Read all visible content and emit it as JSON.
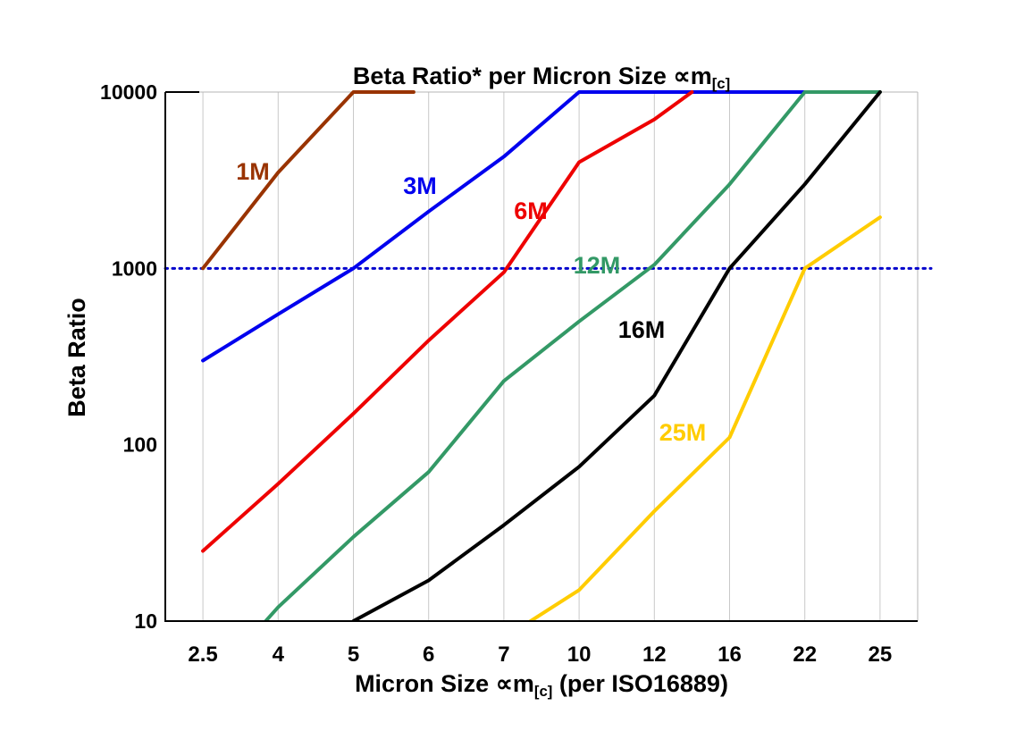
{
  "chart_data": {
    "type": "line",
    "title_full": "Beta Ratio* per Micron Size ∝m[c]",
    "title_parts": {
      "main": "Beta Ratio* per Micron Size ∝m",
      "sub": "[c]"
    },
    "xlabel_full": "Micron Size ∝m[c] (per ISO16889)",
    "xlabel_parts": {
      "main": "Micron Size ∝m",
      "sub": "[c]",
      "suffix": " (per ISO16889)"
    },
    "ylabel": "Beta Ratio",
    "x_categories": [
      2.5,
      4,
      5,
      6,
      7,
      10,
      12,
      16,
      22,
      25
    ],
    "x_tick_labels": [
      "2.5",
      "4",
      "5",
      "6",
      "7",
      "10",
      "12",
      "16",
      "22",
      "25"
    ],
    "y_scale": "log",
    "ylim": [
      10,
      10000
    ],
    "y_ticks": [
      10,
      100,
      1000,
      10000
    ],
    "y_tick_labels": [
      "10",
      "100",
      "1000",
      "10000"
    ],
    "grid": "vertical",
    "legend": "inline-labels",
    "reference_line": {
      "value": 1000,
      "style": "dotted",
      "color": "#0000CC"
    },
    "colors": {
      "grid": "#c9c9c9",
      "axis": "#000000",
      "border": "#b5b5b5",
      "background": "#ffffff",
      "text": "#000000"
    },
    "series": [
      {
        "name": "1M",
        "color": "#993300",
        "points": [
          [
            2.5,
            1000
          ],
          [
            4,
            3500
          ],
          [
            5,
            10000
          ],
          [
            5.8,
            10000
          ]
        ]
      },
      {
        "name": "3M",
        "color": "#0000EE",
        "points": [
          [
            2.5,
            300
          ],
          [
            4,
            550
          ],
          [
            5,
            1000
          ],
          [
            6,
            2100
          ],
          [
            7,
            4300
          ],
          [
            10,
            10000
          ],
          [
            22,
            10000
          ]
        ]
      },
      {
        "name": "6M",
        "color": "#EE0000",
        "points": [
          [
            2.5,
            25
          ],
          [
            4,
            60
          ],
          [
            5,
            150
          ],
          [
            6,
            390
          ],
          [
            7,
            950
          ],
          [
            10,
            4000
          ],
          [
            12,
            7000
          ],
          [
            14,
            10000
          ]
        ]
      },
      {
        "name": "12M",
        "color": "#339966",
        "points": [
          [
            2.5,
            4
          ],
          [
            4,
            12
          ],
          [
            5,
            30
          ],
          [
            6,
            70
          ],
          [
            7,
            230
          ],
          [
            10,
            500
          ],
          [
            12,
            1050
          ],
          [
            16,
            3000
          ],
          [
            22,
            10000
          ],
          [
            25,
            10000
          ]
        ]
      },
      {
        "name": "16M",
        "color": "#000000",
        "points": [
          [
            5,
            10
          ],
          [
            6,
            17
          ],
          [
            7,
            35
          ],
          [
            10,
            75
          ],
          [
            12,
            190
          ],
          [
            16,
            1000
          ],
          [
            22,
            3000
          ],
          [
            25,
            10000
          ]
        ]
      },
      {
        "name": "25M",
        "color": "#FFCC00",
        "points": [
          [
            7,
            8
          ],
          [
            10,
            15
          ],
          [
            12,
            42
          ],
          [
            16,
            110
          ],
          [
            22,
            1000
          ],
          [
            25,
            1950
          ]
        ]
      }
    ]
  }
}
